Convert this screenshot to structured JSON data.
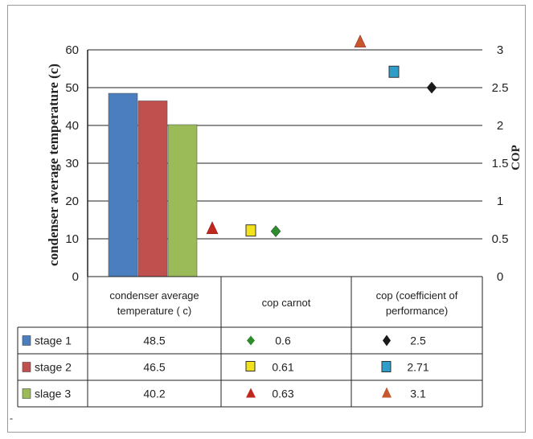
{
  "chart_data": {
    "type": "bar",
    "left_axis": {
      "label": "condenser average temperature (c)",
      "ylim": [
        0,
        60
      ],
      "ticks": [
        "0",
        "10",
        "20",
        "30",
        "40",
        "50",
        "60"
      ]
    },
    "right_axis": {
      "label": "COP",
      "ylim": [
        0,
        3
      ],
      "ticks": [
        "0",
        "0.5",
        "1",
        "1.5",
        "2",
        "2.5",
        "3"
      ]
    },
    "categories": [
      "condenser average temperature ( c)",
      "cop carnot",
      "cop (coefficient of performance)"
    ],
    "series": [
      {
        "name": "stage 1",
        "values": [
          48.5,
          0.6,
          2.5
        ]
      },
      {
        "name": "stage 2",
        "values": [
          46.5,
          0.61,
          2.71
        ]
      },
      {
        "name": "stage 3",
        "values": [
          40.2,
          0.63,
          3.1
        ]
      }
    ],
    "table": {
      "rows": [
        {
          "label": "stage 1",
          "values": [
            "48.5",
            "0.6",
            "2.5"
          ]
        },
        {
          "label": "stage 2",
          "values": [
            "46.5",
            "0.61",
            "2.71"
          ]
        },
        {
          "label": "slage 3",
          "values": [
            "40.2",
            "0.63",
            "3.1"
          ]
        }
      ]
    },
    "grid": true,
    "legend": "data table rows",
    "colors": {
      "bar_stage1": "#4a7ebf",
      "bar_stage2": "#c0504d",
      "bar_stage3": "#9bbb59",
      "carnot_stage1": "#2e8b2e",
      "carnot_stage2": "#f2e21a",
      "carnot_stage3": "#c0281e",
      "cop_stage1": "#1a1a1a",
      "cop_stage2": "#2e9ec8",
      "cop_stage3": "#c8552e"
    },
    "markers": {
      "carnot": [
        "diamond",
        "square",
        "triangle"
      ],
      "cop": [
        "diamond",
        "square",
        "triangle"
      ]
    }
  }
}
